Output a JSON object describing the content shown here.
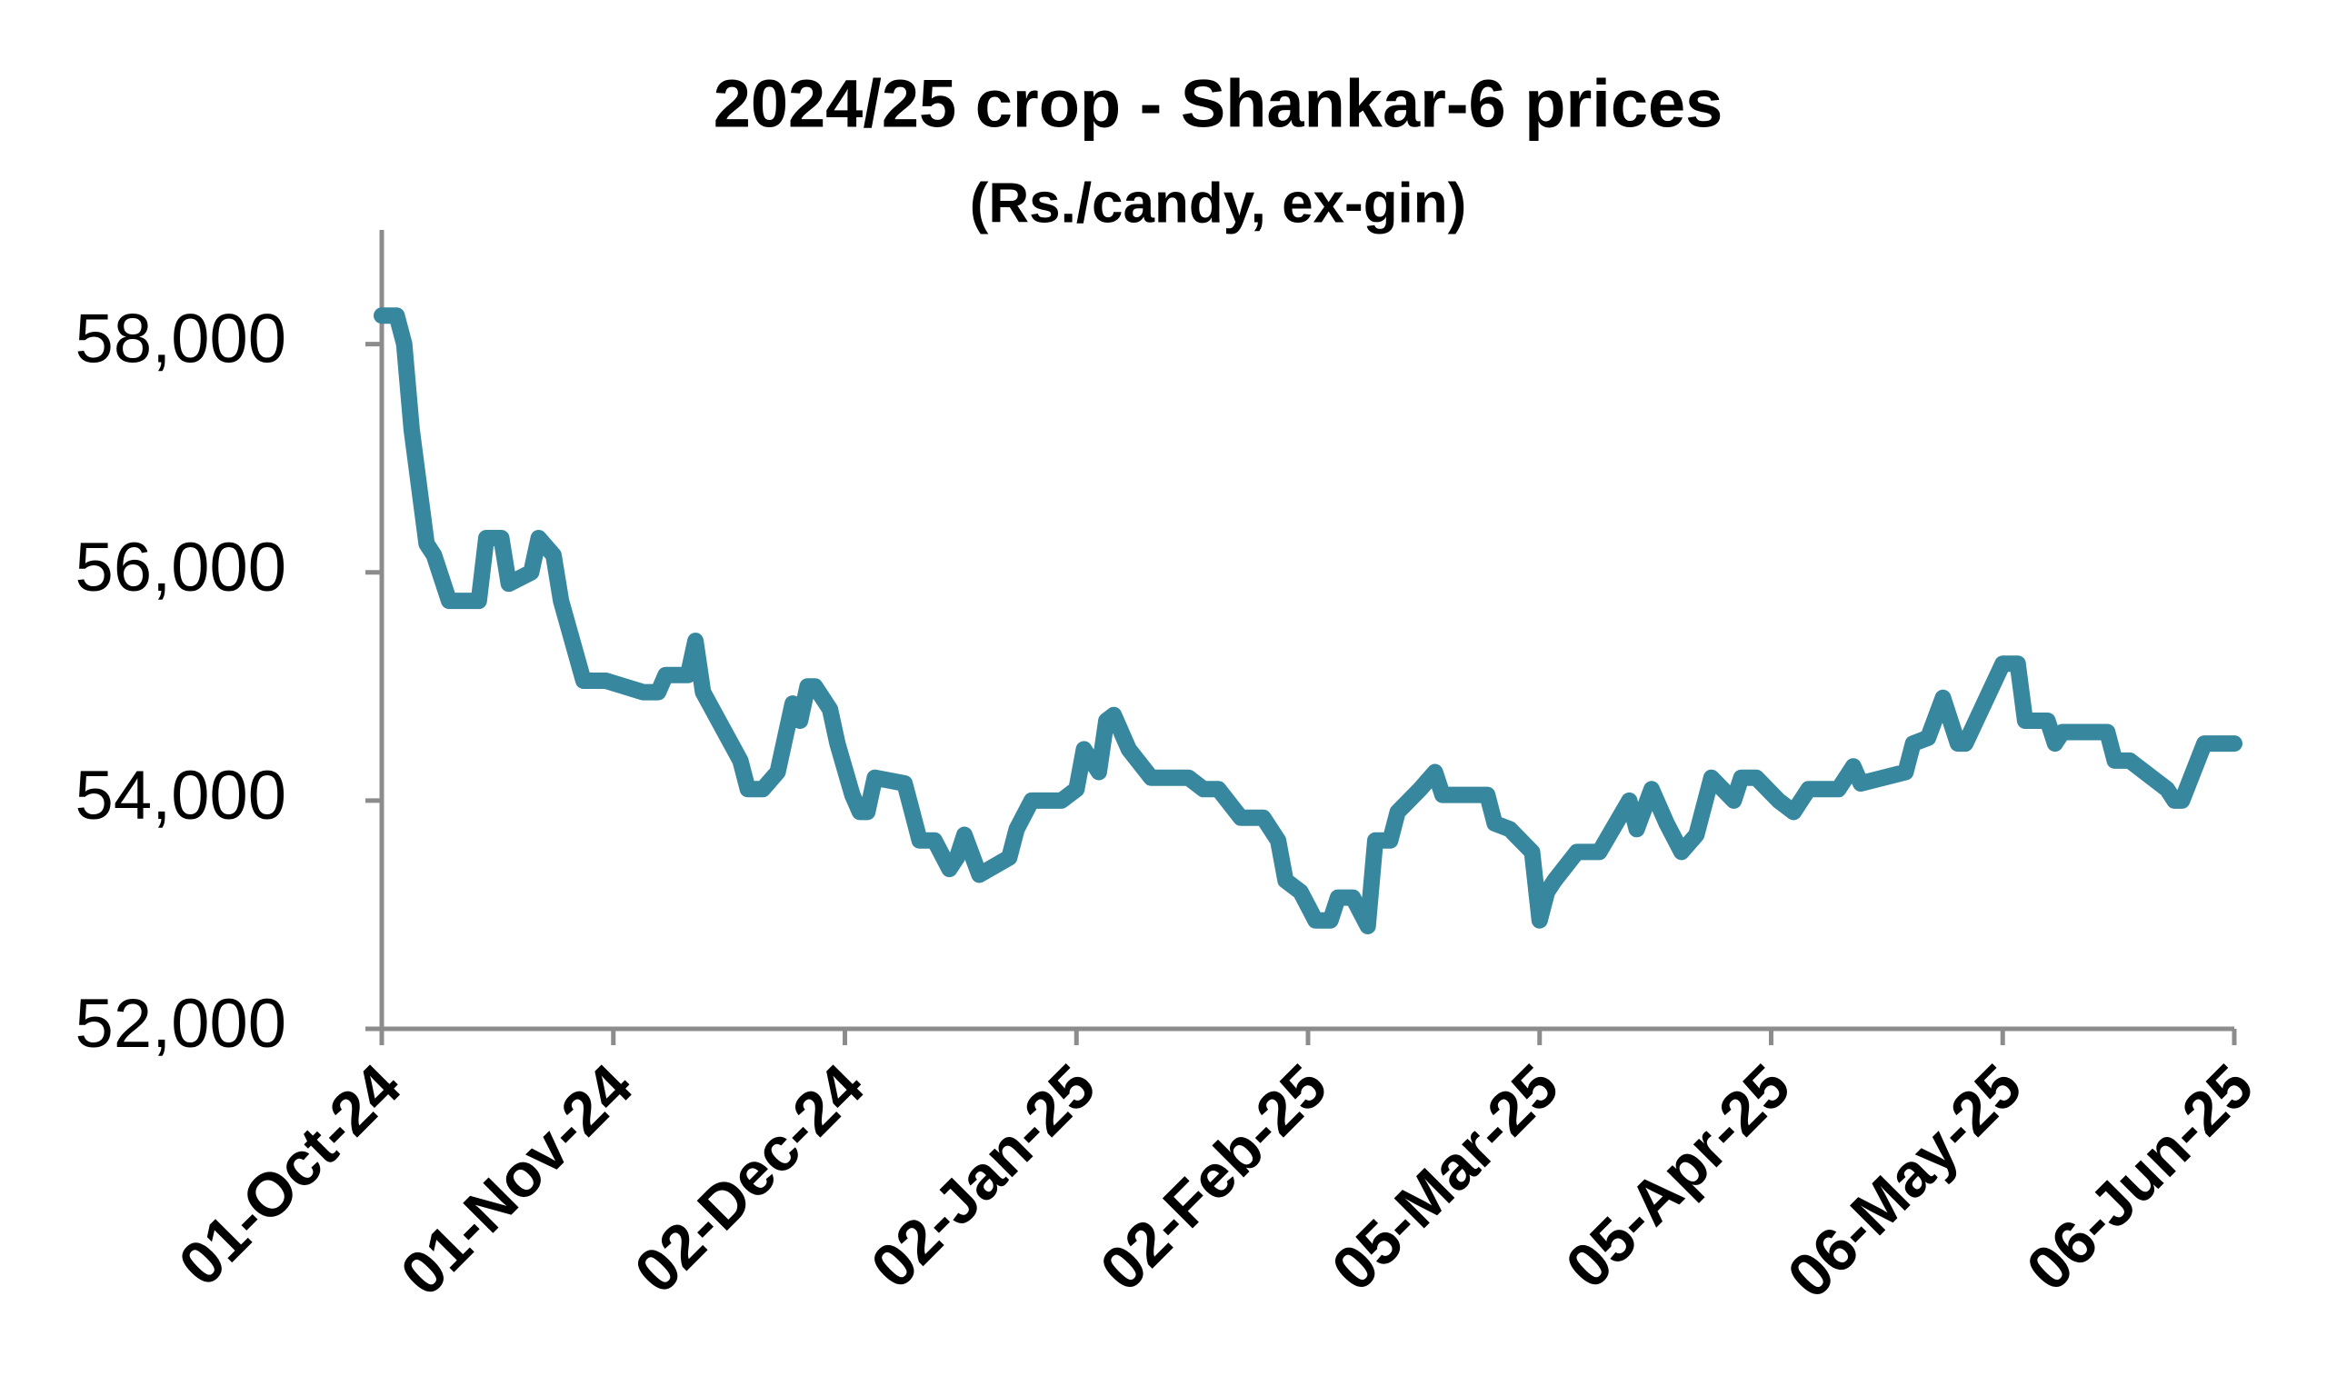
{
  "chart_data": {
    "type": "line",
    "title": "2024/25 crop - Shankar-6 prices",
    "subtitle": "(Rs./candy, ex-gin)",
    "color": "#37879f",
    "x": [
      "2024-10-01",
      "2024-10-03",
      "2024-10-04",
      "2024-10-05",
      "2024-10-07",
      "2024-10-08",
      "2024-10-10",
      "2024-10-14",
      "2024-10-15",
      "2024-10-17",
      "2024-10-18",
      "2024-10-21",
      "2024-10-22",
      "2024-10-24",
      "2024-10-25",
      "2024-10-28",
      "2024-10-31",
      "2024-11-05",
      "2024-11-07",
      "2024-11-08",
      "2024-11-11",
      "2024-11-12",
      "2024-11-13",
      "2024-11-18",
      "2024-11-19",
      "2024-11-21",
      "2024-11-23",
      "2024-11-25",
      "2024-11-26",
      "2024-11-27",
      "2024-11-28",
      "2024-11-30",
      "2024-12-01",
      "2024-12-03",
      "2024-12-04",
      "2024-12-05",
      "2024-12-06",
      "2024-12-10",
      "2024-12-11",
      "2024-12-12",
      "2024-12-14",
      "2024-12-16",
      "2024-12-17",
      "2024-12-18",
      "2024-12-20",
      "2024-12-24",
      "2024-12-25",
      "2024-12-27",
      "2024-12-31",
      "2025-01-02",
      "2025-01-03",
      "2025-01-05",
      "2025-01-06",
      "2025-01-07",
      "2025-01-09",
      "2025-01-12",
      "2025-01-17",
      "2025-01-19",
      "2025-01-21",
      "2025-01-24",
      "2025-01-27",
      "2025-01-29",
      "2025-01-30",
      "2025-02-01",
      "2025-02-03",
      "2025-02-05",
      "2025-02-06",
      "2025-02-08",
      "2025-02-10",
      "2025-02-11",
      "2025-02-13",
      "2025-02-14",
      "2025-02-17",
      "2025-02-19",
      "2025-02-20",
      "2025-02-22",
      "2025-02-26",
      "2025-02-27",
      "2025-03-01",
      "2025-03-04",
      "2025-03-05",
      "2025-03-06",
      "2025-03-07",
      "2025-03-10",
      "2025-03-13",
      "2025-03-17",
      "2025-03-18",
      "2025-03-20",
      "2025-03-22",
      "2025-03-24",
      "2025-03-26",
      "2025-03-28",
      "2025-03-31",
      "2025-04-01",
      "2025-04-03",
      "2025-04-06",
      "2025-04-08",
      "2025-04-10",
      "2025-04-14",
      "2025-04-16",
      "2025-04-17",
      "2025-04-23",
      "2025-04-24",
      "2025-04-26",
      "2025-04-28",
      "2025-04-30",
      "2025-05-01",
      "2025-05-06",
      "2025-05-08",
      "2025-05-09",
      "2025-05-12",
      "2025-05-13",
      "2025-05-14",
      "2025-05-20",
      "2025-05-21",
      "2025-05-23",
      "2025-05-28",
      "2025-05-29",
      "2025-05-30",
      "2025-06-02",
      "2025-06-06"
    ],
    "values": [
      58250,
      58250,
      58000,
      57250,
      56250,
      56150,
      55750,
      55750,
      56300,
      56300,
      55900,
      56000,
      56300,
      56150,
      55750,
      55050,
      55050,
      54950,
      54950,
      55100,
      55100,
      55400,
      54950,
      54350,
      54100,
      54100,
      54250,
      54850,
      54700,
      55000,
      55000,
      54800,
      54500,
      54050,
      53900,
      53900,
      54200,
      54150,
      53900,
      53650,
      53650,
      53400,
      53500,
      53700,
      53350,
      53500,
      53750,
      54000,
      54000,
      54100,
      54450,
      54250,
      54700,
      54750,
      54450,
      54200,
      54200,
      54100,
      54100,
      53850,
      53850,
      53650,
      53300,
      53200,
      52950,
      52950,
      53150,
      53150,
      52900,
      53650,
      53650,
      53900,
      54100,
      54250,
      54050,
      54050,
      54050,
      53800,
      53750,
      53550,
      52950,
      53200,
      53300,
      53550,
      53550,
      54000,
      53750,
      54100,
      53800,
      53550,
      53700,
      54200,
      54000,
      54200,
      54200,
      54000,
      53900,
      54100,
      54100,
      54300,
      54150,
      54250,
      54500,
      54550,
      54900,
      54500,
      54500,
      55200,
      55200,
      54700,
      54700,
      54500,
      54600,
      54600,
      54350,
      54350,
      54100,
      54000,
      54000,
      54500,
      54500
    ],
    "xlim": [
      "2024-10-01",
      "2025-06-06"
    ],
    "xticks": [
      {
        "value": "2024-10-01",
        "label": "01-Oct-24"
      },
      {
        "value": "2024-11-01",
        "label": "01-Nov-24"
      },
      {
        "value": "2024-12-02",
        "label": "02-Dec-24"
      },
      {
        "value": "2025-01-02",
        "label": "02-Jan-25"
      },
      {
        "value": "2025-02-02",
        "label": "02-Feb-25"
      },
      {
        "value": "2025-03-05",
        "label": "05-Mar-25"
      },
      {
        "value": "2025-04-05",
        "label": "05-Apr-25"
      },
      {
        "value": "2025-05-06",
        "label": "06-May-25"
      },
      {
        "value": "2025-06-06",
        "label": "06-Jun-25"
      }
    ],
    "ylim": [
      52000,
      59000
    ],
    "yticks": [
      {
        "value": 52000,
        "label": "52,000"
      },
      {
        "value": 54000,
        "label": "54,000"
      },
      {
        "value": 56000,
        "label": "56,000"
      },
      {
        "value": 58000,
        "label": "58,000"
      }
    ],
    "grid": false
  }
}
